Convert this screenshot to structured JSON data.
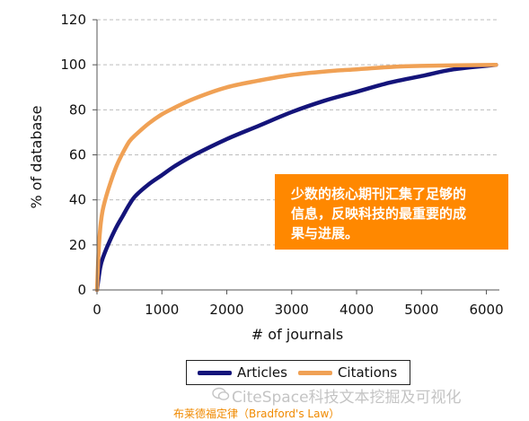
{
  "chart_data": {
    "type": "line",
    "xlabel": "# of journals",
    "ylabel": "% of database",
    "xlim": [
      0,
      6200
    ],
    "ylim": [
      0,
      120
    ],
    "xticks": [
      0,
      1000,
      2000,
      3000,
      4000,
      5000,
      6000
    ],
    "yticks": [
      0,
      20,
      40,
      60,
      80,
      100,
      120
    ],
    "grid": "horizontal dashed",
    "legend_position": "bottom",
    "series": [
      {
        "name": "Articles",
        "color": "#14147a",
        "points": [
          [
            0,
            0
          ],
          [
            50,
            10
          ],
          [
            100,
            15
          ],
          [
            200,
            22
          ],
          [
            300,
            28
          ],
          [
            400,
            33
          ],
          [
            500,
            38
          ],
          [
            600,
            42
          ],
          [
            800,
            47
          ],
          [
            1000,
            51
          ],
          [
            1200,
            55
          ],
          [
            1500,
            60
          ],
          [
            2000,
            67
          ],
          [
            2500,
            73
          ],
          [
            3000,
            79
          ],
          [
            3500,
            84
          ],
          [
            4000,
            88
          ],
          [
            4500,
            92
          ],
          [
            5000,
            95
          ],
          [
            5500,
            98
          ],
          [
            6150,
            100
          ]
        ]
      },
      {
        "name": "Citations",
        "color": "#f0a155",
        "points": [
          [
            0,
            0
          ],
          [
            30,
            20
          ],
          [
            60,
            30
          ],
          [
            100,
            37
          ],
          [
            200,
            47
          ],
          [
            300,
            55
          ],
          [
            400,
            61
          ],
          [
            500,
            66
          ],
          [
            600,
            69
          ],
          [
            800,
            74
          ],
          [
            1000,
            78
          ],
          [
            1200,
            81
          ],
          [
            1500,
            85
          ],
          [
            2000,
            90
          ],
          [
            2500,
            93
          ],
          [
            3000,
            95.5
          ],
          [
            3500,
            97
          ],
          [
            4000,
            98
          ],
          [
            4500,
            99
          ],
          [
            5000,
            99.5
          ],
          [
            6150,
            100
          ]
        ]
      }
    ],
    "annotation": {
      "lines": [
        "少数的核心期刊汇集了足够的",
        "信息，反映科技的最重要的成",
        "果与进展。"
      ],
      "background": "#ff8800"
    }
  },
  "watermark": "CiteSpace科技文本挖掘及可视化",
  "caption": "布莱德福定律（Bradford's Law）"
}
